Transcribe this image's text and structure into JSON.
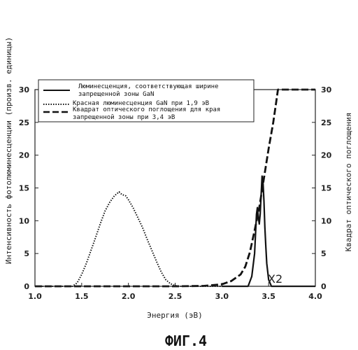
{
  "figure_caption": "ФИГ.4",
  "chart_data": {
    "type": "line",
    "xlabel": "Энергия (эВ)",
    "ylabel": "Интенсивность фотолюминесценции (произв. единицы)",
    "y2label": "Квадрат оптического поглощения",
    "xlim": [
      1.0,
      4.0
    ],
    "ylim": [
      0,
      30
    ],
    "y2lim": [
      0,
      30
    ],
    "xticks": [
      "1.0",
      "1.5",
      "2.0",
      "2.5",
      "3.0",
      "3.5",
      "4.0"
    ],
    "yticks": [
      "0",
      "5",
      "10",
      "15",
      "20",
      "25",
      "30"
    ],
    "y2ticks": [
      "0",
      "5",
      "10",
      "15",
      "20",
      "25",
      "30"
    ],
    "grid": false,
    "legend_position": "top",
    "annotations": [
      {
        "text": "X2",
        "x": 3.6,
        "y": 0.9
      }
    ],
    "series": [
      {
        "name": "Люминесценция, соответствующая ширине запрещенной зоны GaN",
        "style": "solid",
        "x": [
          3.0,
          3.28,
          3.32,
          3.35,
          3.37,
          3.38,
          3.39,
          3.4,
          3.41,
          3.42,
          3.43,
          3.44,
          3.45,
          3.46,
          3.47,
          3.48,
          3.5,
          3.53,
          3.6,
          4.0
        ],
        "y": [
          0.0,
          0.0,
          1.5,
          5.0,
          11.0,
          12.0,
          10.5,
          9.5,
          11.0,
          14.0,
          16.8,
          16.0,
          13.0,
          9.0,
          6.0,
          3.5,
          1.0,
          0.0,
          0.0,
          0.0
        ]
      },
      {
        "name": "Красная люминесценция GaN при 1,9 эВ",
        "style": "dotted",
        "x": [
          1.0,
          1.4,
          1.45,
          1.5,
          1.55,
          1.6,
          1.65,
          1.7,
          1.75,
          1.8,
          1.85,
          1.9,
          1.93,
          1.97,
          2.0,
          2.05,
          2.1,
          2.15,
          2.2,
          2.25,
          2.3,
          2.35,
          2.4,
          2.45,
          2.5,
          2.55,
          3.0
        ],
        "y": [
          0.0,
          0.0,
          0.5,
          1.8,
          3.5,
          5.5,
          7.5,
          9.6,
          11.5,
          12.8,
          13.8,
          14.4,
          14.0,
          13.8,
          13.2,
          12.0,
          10.5,
          9.0,
          7.2,
          5.5,
          3.8,
          2.2,
          1.0,
          0.4,
          0.1,
          0.0,
          0.0
        ]
      },
      {
        "name": "Квадрат оптического поглощения для края запрещенной зоны при 3,4 эВ",
        "style": "dashed",
        "x": [
          1.0,
          2.5,
          2.8,
          3.0,
          3.1,
          3.2,
          3.25,
          3.3,
          3.35,
          3.4,
          3.45,
          3.5,
          3.55,
          3.58,
          3.6,
          3.62,
          4.0
        ],
        "y": [
          0.0,
          0.0,
          0.05,
          0.3,
          0.8,
          1.8,
          3.0,
          5.2,
          8.5,
          12.0,
          16.5,
          21.0,
          25.0,
          28.0,
          30.0,
          30.0,
          30.0
        ]
      }
    ]
  }
}
